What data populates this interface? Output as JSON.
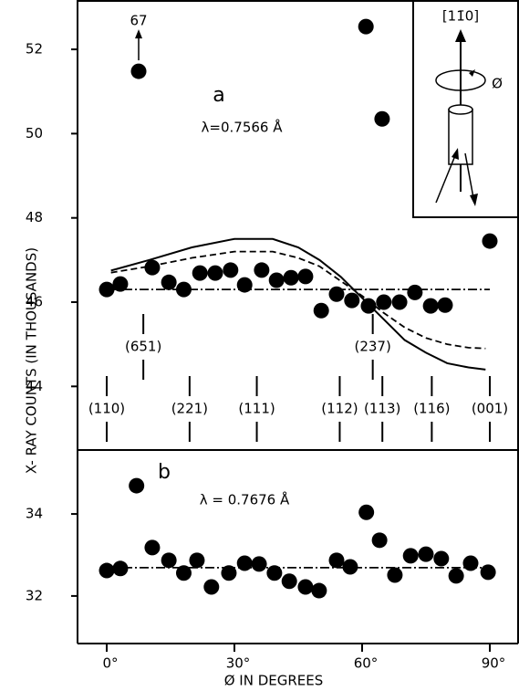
{
  "chart_data": [
    {
      "type": "scatter",
      "panel_label": "a",
      "subtitle": "λ=0.7566 Å",
      "ylabel": "X- RAY   COUNTS   (IN THOUSANDS)",
      "xlim": [
        -6.86,
        96.86
      ],
      "ylim": [
        42.49,
        53.15
      ],
      "yticks": [
        44,
        46,
        48,
        50,
        52
      ],
      "series": [
        {
          "color": "#000000",
          "x": [
            0,
            3.2,
            7.5,
            10.7,
            14.6,
            18.1,
            21.9,
            25.5,
            29.1,
            32.4,
            36.4,
            39.9,
            43.3,
            46.7,
            50.4,
            54.0,
            57.6,
            60.9,
            61.5,
            64.7,
            65.1,
            68.8,
            72.4,
            76.1,
            79.5,
            90
          ],
          "values": [
            46.3,
            46.43,
            51.48,
            46.82,
            46.47,
            46.3,
            46.69,
            46.69,
            46.76,
            46.41,
            46.76,
            46.52,
            46.58,
            46.61,
            45.8,
            46.19,
            46.04,
            52.54,
            45.91,
            50.35,
            46.0,
            46.0,
            46.23,
            45.91,
            45.93,
            47.45
          ]
        }
      ],
      "lines": [
        {
          "style": "solid",
          "x": [
            1,
            10,
            20,
            30,
            39,
            45,
            50,
            55,
            60,
            65,
            70,
            75,
            80,
            85,
            89
          ],
          "values": [
            46.75,
            47.0,
            47.3,
            47.5,
            47.5,
            47.3,
            47.0,
            46.6,
            46.1,
            45.6,
            45.1,
            44.8,
            44.55,
            44.45,
            44.4
          ]
        },
        {
          "style": "dashed",
          "x": [
            1,
            10,
            20,
            30,
            39,
            45,
            50,
            55,
            60,
            65,
            70,
            75,
            80,
            85,
            89
          ],
          "values": [
            46.7,
            46.85,
            47.05,
            47.2,
            47.2,
            47.05,
            46.85,
            46.5,
            46.15,
            45.75,
            45.4,
            45.15,
            45.0,
            44.92,
            44.9
          ]
        },
        {
          "style": "dashdot",
          "x": [
            0,
            90
          ],
          "values": [
            46.3,
            46.3
          ]
        }
      ],
      "off_scale_label": {
        "text": "67",
        "x": 7.5,
        "y": 51.48
      },
      "reflections": [
        {
          "text": "(110)",
          "x": 0
        },
        {
          "text": "(221)",
          "x": 19.47
        },
        {
          "text": "(111)",
          "x": 35.26
        },
        {
          "text": "(112)",
          "x": 54.74
        },
        {
          "text": "(113)",
          "x": 64.76
        },
        {
          "text": "(116)",
          "x": 76.37
        },
        {
          "text": "(001)",
          "x": 90
        }
      ],
      "reflections_upper": [
        {
          "text": "(651)",
          "x": 8.6
        },
        {
          "text": "(237)",
          "x": 62.5
        }
      ],
      "inset": {
        "axis_label": "[11̄0]",
        "rotation_label": "Ø"
      }
    },
    {
      "type": "scatter",
      "panel_label": "b",
      "subtitle": "λ = 0.7676 Å",
      "xlabel": "Ø   IN   DEGREES",
      "xlim": [
        -6.86,
        96.86
      ],
      "ylim": [
        30.84,
        35.56
      ],
      "yticks": [
        32,
        34
      ],
      "xticks": [
        {
          "value": 0,
          "label": "0°"
        },
        {
          "value": 30,
          "label": "30°"
        },
        {
          "value": 60,
          "label": "60°"
        },
        {
          "value": 90,
          "label": "90°"
        }
      ],
      "series": [
        {
          "color": "#000000",
          "x": [
            0,
            3.2,
            7.0,
            10.7,
            14.6,
            18.1,
            21.2,
            24.6,
            28.7,
            32.4,
            35.8,
            39.4,
            42.9,
            46.7,
            49.9,
            54.0,
            57.2,
            61.0,
            64.1,
            67.7,
            71.4,
            75.0,
            78.6,
            82.1,
            85.5,
            89.6
          ],
          "values": [
            32.62,
            32.67,
            34.69,
            33.18,
            32.87,
            32.56,
            32.87,
            32.22,
            32.56,
            32.8,
            32.78,
            32.56,
            32.36,
            32.22,
            32.13,
            32.87,
            32.71,
            34.04,
            33.36,
            32.51,
            32.98,
            33.02,
            32.91,
            32.49,
            32.8,
            32.58
          ]
        }
      ],
      "lines": [
        {
          "style": "dashdot",
          "x": [
            0,
            90
          ],
          "values": [
            32.69,
            32.69
          ]
        }
      ]
    }
  ]
}
